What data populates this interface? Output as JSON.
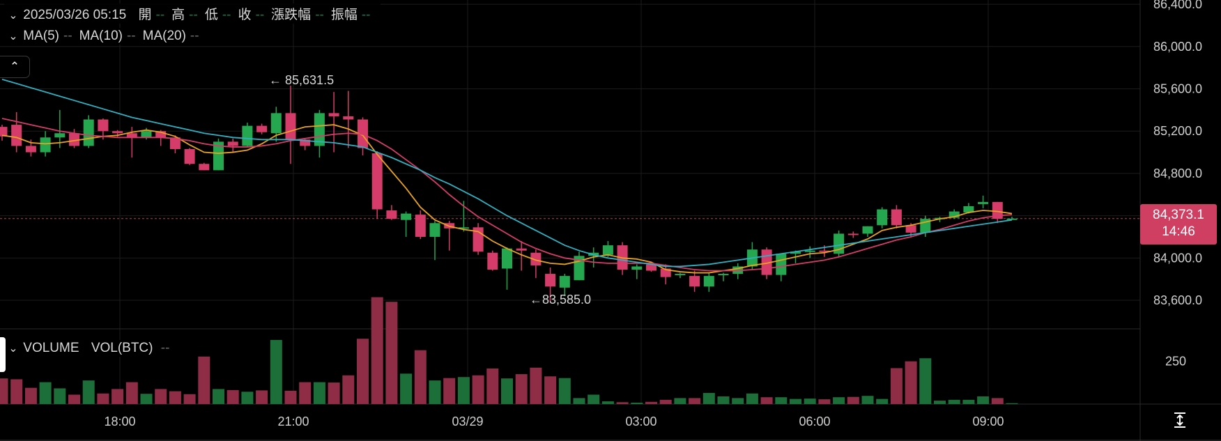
{
  "header": {
    "datetime": "2025/03/26 05:15",
    "fields": [
      {
        "label": "開",
        "value": "--"
      },
      {
        "label": "高",
        "value": "--"
      },
      {
        "label": "低",
        "value": "--"
      },
      {
        "label": "收",
        "value": "--"
      },
      {
        "label": "漲跌幅",
        "value": "--"
      },
      {
        "label": "振幅",
        "value": "--"
      }
    ]
  },
  "ma_legend": [
    {
      "label": "MA(5)",
      "value": "--",
      "color": "#e8a31c"
    },
    {
      "label": "MA(10)",
      "value": "--",
      "color": "#d63c6a"
    },
    {
      "label": "MA(20)",
      "value": "--",
      "color": "#2eb1c2"
    }
  ],
  "volume_legend": {
    "label": "VOLUME",
    "sub": "VOL(BTC)",
    "value": "--"
  },
  "price_tag": {
    "price": "84,373.1",
    "countdown": "14:46"
  },
  "high_label": "85,631.5",
  "low_label": "83,585.0",
  "colors": {
    "up": "#25a750",
    "down": "#d63c6a",
    "up_vol": "#1d6f3a",
    "down_vol": "#8f2c46",
    "grid": "#1c1c1c"
  },
  "chart_data": {
    "type": "candlestick",
    "x_ticks": [
      "18:00",
      "21:00",
      "03/29",
      "03:00",
      "06:00",
      "09:00"
    ],
    "y_ticks": [
      "83,600.0",
      "84,000.0",
      "84,400.0",
      "84,800.0",
      "85,200.0",
      "85,600.0",
      "86,000.0",
      "86,400.0"
    ],
    "y_tick_values": [
      83600,
      84000,
      84400,
      84800,
      85200,
      85600,
      86000,
      86400
    ],
    "ylim": [
      83330,
      86440
    ],
    "volume_ticks": [
      "250"
    ],
    "volume_tick_values": [
      250
    ],
    "volume_ylim": [
      0,
      440
    ],
    "last_price": 84373.1,
    "candles": [
      [
        85240,
        85260,
        85110,
        85150,
        5
      ],
      [
        85260,
        85380,
        85000,
        85060,
        5
      ],
      [
        85060,
        85120,
        84960,
        85000,
        5
      ],
      [
        85000,
        85200,
        84960,
        85140,
        5
      ],
      [
        85140,
        85400,
        85040,
        85180,
        5
      ],
      [
        85180,
        85220,
        85040,
        85060,
        5
      ],
      [
        85060,
        85350,
        85040,
        85310,
        5
      ],
      [
        85310,
        85320,
        85120,
        85200,
        5
      ],
      [
        85200,
        85210,
        85140,
        85180,
        5
      ],
      [
        85180,
        85240,
        84950,
        85140,
        5
      ],
      [
        85140,
        85230,
        85120,
        85200,
        5
      ],
      [
        85200,
        85210,
        85060,
        85140,
        5
      ],
      [
        85140,
        85160,
        84990,
        85030,
        5
      ],
      [
        85030,
        85040,
        84880,
        84890,
        5
      ],
      [
        84890,
        84900,
        84830,
        84830,
        5
      ],
      [
        84830,
        85130,
        84830,
        85100,
        5
      ],
      [
        85100,
        85130,
        85000,
        85060,
        5
      ],
      [
        85060,
        85280,
        85050,
        85250,
        5
      ],
      [
        85250,
        85270,
        85170,
        85190,
        5
      ],
      [
        85180,
        85430,
        85100,
        85370,
        5
      ],
      [
        85370,
        85630,
        84890,
        85120,
        5
      ],
      [
        85120,
        85130,
        85020,
        85060,
        5
      ],
      [
        85060,
        85400,
        84950,
        85370,
        5
      ],
      [
        85370,
        85570,
        85000,
        85340,
        5
      ],
      [
        85340,
        85580,
        85040,
        85310,
        5
      ],
      [
        85310,
        85330,
        84970,
        85040,
        5
      ],
      [
        84990,
        85010,
        84370,
        84460,
        5
      ],
      [
        84450,
        84500,
        84360,
        84370,
        5
      ],
      [
        84360,
        84440,
        84200,
        84420,
        5
      ],
      [
        84410,
        84450,
        84180,
        84200,
        5
      ],
      [
        84200,
        84350,
        83980,
        84330,
        5
      ],
      [
        84330,
        84350,
        84070,
        84280,
        5
      ],
      [
        84280,
        84540,
        84250,
        84290,
        5
      ],
      [
        84290,
        84330,
        84030,
        84060,
        5
      ],
      [
        84050,
        84070,
        83880,
        83890,
        5
      ],
      [
        83900,
        84100,
        83700,
        84090,
        5
      ],
      [
        84090,
        84160,
        83880,
        84070,
        5
      ],
      [
        84050,
        84080,
        83810,
        83930,
        5
      ],
      [
        83850,
        83910,
        83590,
        83730,
        5
      ],
      [
        83720,
        83850,
        83640,
        83830,
        5
      ],
      [
        83790,
        84060,
        83790,
        84020,
        5
      ],
      [
        84020,
        84100,
        83910,
        84050,
        5
      ],
      [
        84030,
        84160,
        84010,
        84120,
        5
      ],
      [
        84120,
        84150,
        83840,
        83890,
        5
      ],
      [
        83890,
        83940,
        83800,
        83920,
        5
      ],
      [
        83940,
        83960,
        83870,
        83880,
        5
      ],
      [
        83900,
        83940,
        83750,
        83820,
        5
      ],
      [
        83840,
        83860,
        83810,
        83850,
        5
      ],
      [
        83830,
        83880,
        83680,
        83730,
        5
      ],
      [
        83730,
        83860,
        83680,
        83830,
        5
      ],
      [
        83840,
        83860,
        83780,
        83850,
        5
      ],
      [
        83850,
        83950,
        83800,
        83920,
        5
      ],
      [
        83920,
        84150,
        83890,
        84080,
        5
      ],
      [
        84080,
        84100,
        83800,
        83840,
        5
      ],
      [
        83840,
        84030,
        83780,
        84040,
        5
      ],
      [
        84040,
        84070,
        83950,
        84060,
        5
      ],
      [
        84060,
        84110,
        84000,
        84070,
        5
      ],
      [
        84070,
        84120,
        84010,
        84060,
        5
      ],
      [
        84040,
        84260,
        84010,
        84230,
        5
      ],
      [
        84230,
        84250,
        84190,
        84220,
        5
      ],
      [
        84230,
        84300,
        84200,
        84300,
        5
      ],
      [
        84310,
        84480,
        84280,
        84460,
        5
      ],
      [
        84460,
        84500,
        84280,
        84310,
        5
      ],
      [
        84310,
        84330,
        84200,
        84240,
        5
      ],
      [
        84240,
        84400,
        84200,
        84370,
        5
      ],
      [
        84370,
        84390,
        84340,
        84380,
        5
      ],
      [
        84380,
        84460,
        84370,
        84440,
        5
      ],
      [
        84430,
        84520,
        84420,
        84490,
        5
      ],
      [
        84510,
        84590,
        84470,
        84530,
        5
      ],
      [
        84530,
        84530,
        84330,
        84370,
        5
      ],
      [
        84370,
        84390,
        84360,
        84373,
        5
      ]
    ],
    "volumes": [
      150,
      145,
      95,
      128,
      92,
      55,
      138,
      62,
      88,
      128,
      60,
      88,
      75,
      58,
      278,
      88,
      82,
      72,
      80,
      375,
      78,
      128,
      128,
      126,
      168,
      382,
      625,
      598,
      178,
      315,
      138,
      152,
      158,
      168,
      208,
      150,
      175,
      213,
      162,
      152,
      35,
      55,
      16,
      11,
      8,
      13,
      25,
      35,
      35,
      65,
      45,
      35,
      62,
      40,
      40,
      30,
      32,
      28,
      40,
      42,
      48,
      30,
      210,
      250,
      268,
      20,
      25,
      25,
      45,
      35,
      5
    ],
    "ma5": [
      85160,
      85140,
      85090,
      85080,
      85090,
      85110,
      85130,
      85150,
      85160,
      85190,
      85210,
      85190,
      85150,
      85070,
      85000,
      84990,
      85000,
      85020,
      85080,
      85160,
      85200,
      85240,
      85250,
      85260,
      85220,
      85160,
      84980,
      84820,
      84660,
      84480,
      84360,
      84300,
      84270,
      84250,
      84160,
      84090,
      84030,
      83980,
      83950,
      83940,
      83970,
      84010,
      84030,
      84000,
      83990,
      83960,
      83890,
      83870,
      83860,
      83860,
      83880,
      83900,
      83930,
      83950,
      83980,
      84010,
      84040,
      84050,
      84080,
      84130,
      84180,
      84260,
      84290,
      84310,
      84340,
      84370,
      84390,
      84430,
      84450,
      84440,
      84420
    ],
    "ma10": [
      85320,
      85290,
      85260,
      85230,
      85200,
      85180,
      85160,
      85150,
      85140,
      85140,
      85140,
      85140,
      85130,
      85110,
      85080,
      85060,
      85050,
      85050,
      85060,
      85080,
      85110,
      85130,
      85150,
      85170,
      85180,
      85170,
      85110,
      85030,
      84930,
      84830,
      84720,
      84600,
      84490,
      84390,
      84310,
      84230,
      84150,
      84090,
      84040,
      84000,
      83980,
      83960,
      83950,
      83950,
      83950,
      83950,
      83930,
      83910,
      83890,
      83880,
      83880,
      83880,
      83890,
      83900,
      83920,
      83940,
      83960,
      83980,
      84010,
      84050,
      84090,
      84130,
      84170,
      84200,
      84240,
      84270,
      84310,
      84350,
      84380,
      84400,
      84410
    ],
    "ma20": [
      85690,
      85650,
      85610,
      85570,
      85530,
      85490,
      85450,
      85410,
      85370,
      85330,
      85300,
      85270,
      85240,
      85210,
      85180,
      85160,
      85140,
      85130,
      85120,
      85120,
      85120,
      85110,
      85100,
      85090,
      85070,
      85050,
      85000,
      84950,
      84890,
      84830,
      84760,
      84700,
      84630,
      84560,
      84480,
      84400,
      84330,
      84260,
      84190,
      84120,
      84070,
      84030,
      84000,
      83980,
      83960,
      83940,
      83920,
      83920,
      83930,
      83940,
      83960,
      83980,
      84000,
      84020,
      84040,
      84060,
      84080,
      84100,
      84120,
      84140,
      84160,
      84180,
      84200,
      84220,
      84240,
      84260,
      84280,
      84300,
      84320,
      84340,
      84360
    ]
  }
}
